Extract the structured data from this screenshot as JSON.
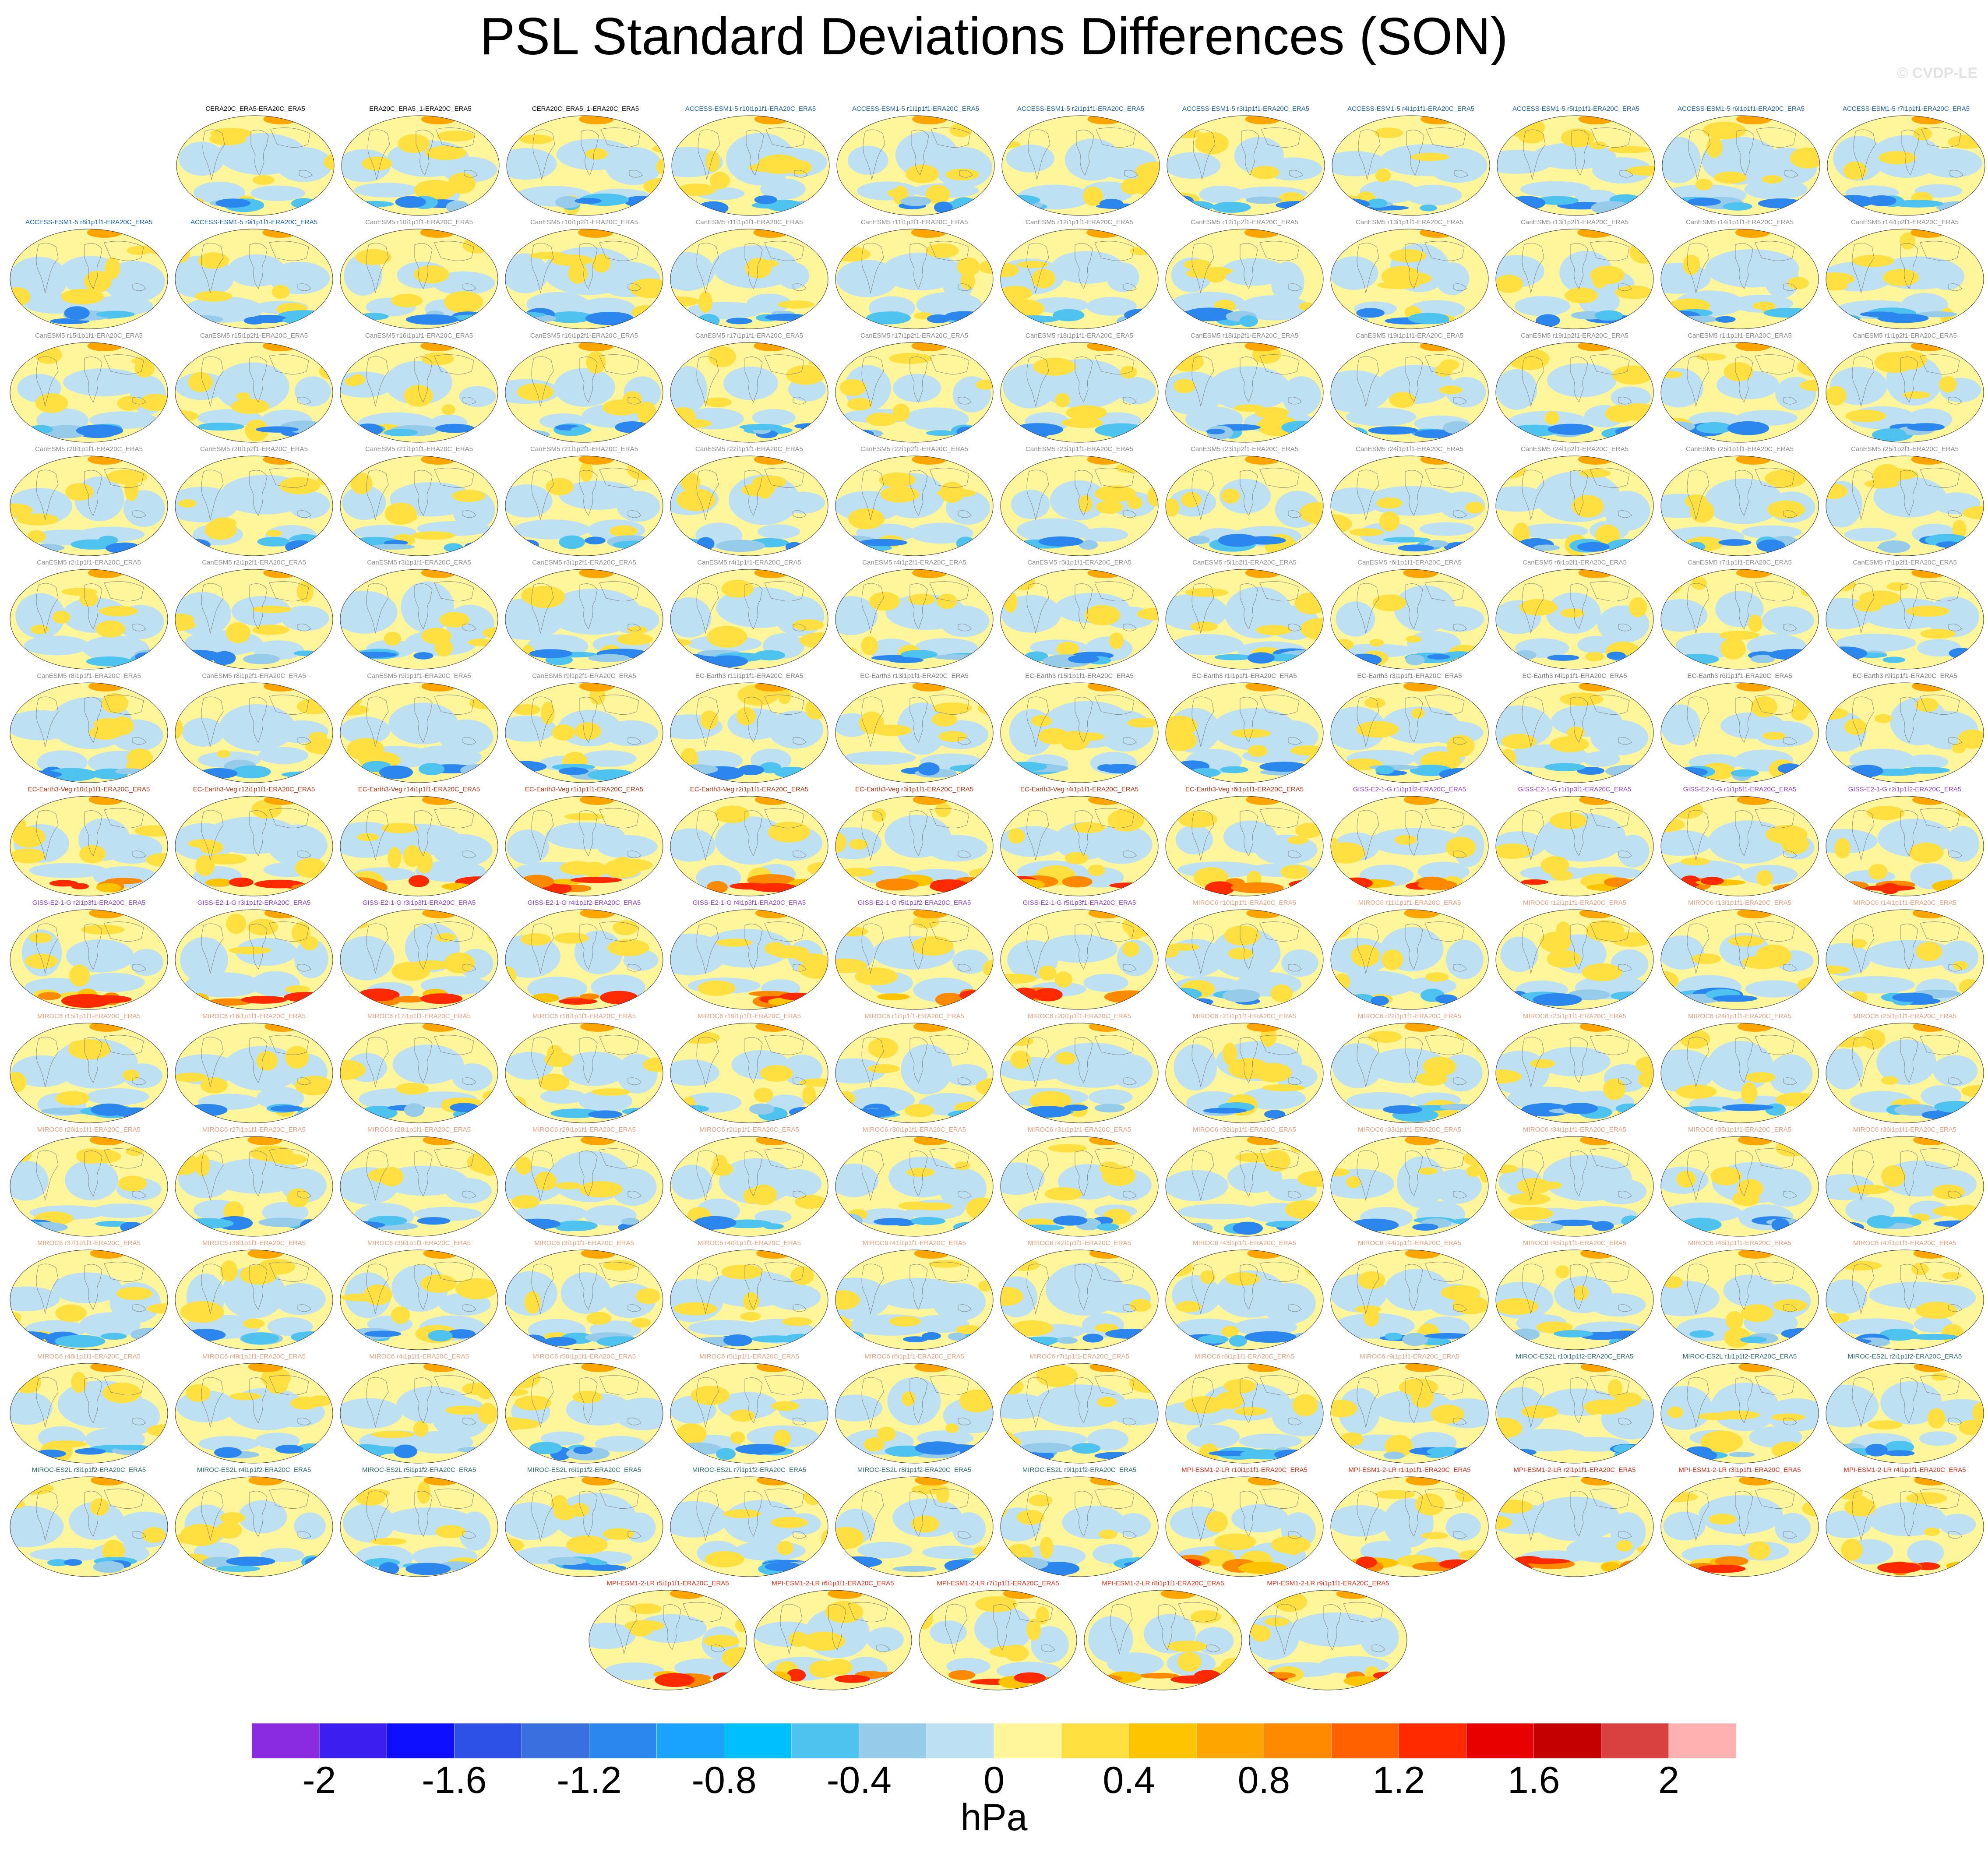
{
  "title": "PSL Standard Deviations Differences (SON)",
  "credit": "© CVDP-LE",
  "chart_data": {
    "type": "heatmap",
    "title": "PSL Standard Deviations Differences (SON)",
    "units": "hPa",
    "colorbar": {
      "ticks": [
        "-2",
        "-1.6",
        "-1.2",
        "-0.8",
        "-0.4",
        "0",
        "0.4",
        "0.8",
        "1.2",
        "1.6",
        "2"
      ],
      "levels": [
        -2.2,
        -2.0,
        -1.8,
        -1.6,
        -1.4,
        -1.2,
        -1.0,
        -0.8,
        -0.6,
        -0.4,
        -0.2,
        0,
        0.2,
        0.4,
        0.6,
        0.8,
        1.0,
        1.2,
        1.4,
        1.6,
        1.8,
        2.0,
        2.2
      ],
      "colors": [
        "#8a2be2",
        "#3c1ef0",
        "#0f0fff",
        "#2d50e6",
        "#3a6fe0",
        "#2b86ee",
        "#19a3ff",
        "#00bfff",
        "#4fc3f0",
        "#96cbea",
        "#bde0f3",
        "#fff59a",
        "#ffe040",
        "#ffc400",
        "#ffa500",
        "#ff8a00",
        "#ff6000",
        "#ff2a00",
        "#e80000",
        "#c40000",
        "#d94040",
        "#ffb0b0"
      ]
    },
    "panels": [
      {
        "label": "CERA20C_ERA5-ERA20C_ERA5",
        "color": "#000000"
      },
      {
        "label": "ERA20C_ERA5_1-ERA20C_ERA5",
        "color": "#000000"
      },
      {
        "label": "CERA20C_ERA5_1-ERA20C_ERA5",
        "color": "#000000"
      },
      {
        "label": "ACCESS-ESM1-5 r10i1p1f1-ERA20C_ERA5",
        "color": "#1a5fa8"
      },
      {
        "label": "ACCESS-ESM1-5 r1i1p1f1-ERA20C_ERA5",
        "color": "#1a5fa8"
      },
      {
        "label": "ACCESS-ESM1-5 r2i1p1f1-ERA20C_ERA5",
        "color": "#1a5fa8"
      },
      {
        "label": "ACCESS-ESM1-5 r3i1p1f1-ERA20C_ERA5",
        "color": "#1a5fa8"
      },
      {
        "label": "ACCESS-ESM1-5 r4i1p1f1-ERA20C_ERA5",
        "color": "#1a5fa8"
      },
      {
        "label": "ACCESS-ESM1-5 r5i1p1f1-ERA20C_ERA5",
        "color": "#1a5fa8"
      },
      {
        "label": "ACCESS-ESM1-5 r6i1p1f1-ERA20C_ERA5",
        "color": "#1a5fa8"
      },
      {
        "label": "ACCESS-ESM1-5 r7i1p1f1-ERA20C_ERA5",
        "color": "#1a5fa8"
      },
      {
        "label": "ACCESS-ESM1-5 r8i1p1f1-ERA20C_ERA5",
        "color": "#1a5fa8"
      },
      {
        "label": "ACCESS-ESM1-5 r9i1p1f1-ERA20C_ERA5",
        "color": "#1a5fa8"
      },
      {
        "label": "CanESM5 r10i1p1f1-ERA20C_ERA5",
        "color": "#8c8c8c"
      },
      {
        "label": "CanESM5 r10i1p2f1-ERA20C_ERA5",
        "color": "#8c8c8c"
      },
      {
        "label": "CanESM5 r11i1p1f1-ERA20C_ERA5",
        "color": "#8c8c8c"
      },
      {
        "label": "CanESM5 r11i1p2f1-ERA20C_ERA5",
        "color": "#8c8c8c"
      },
      {
        "label": "CanESM5 r12i1p1f1-ERA20C_ERA5",
        "color": "#8c8c8c"
      },
      {
        "label": "CanESM5 r12i1p2f1-ERA20C_ERA5",
        "color": "#8c8c8c"
      },
      {
        "label": "CanESM5 r13i1p1f1-ERA20C_ERA5",
        "color": "#8c8c8c"
      },
      {
        "label": "CanESM5 r13i1p2f1-ERA20C_ERA5",
        "color": "#8c8c8c"
      },
      {
        "label": "CanESM5 r14i1p1f1-ERA20C_ERA5",
        "color": "#8c8c8c"
      },
      {
        "label": "CanESM5 r14i1p2f1-ERA20C_ERA5",
        "color": "#8c8c8c"
      },
      {
        "label": "CanESM5 r15i1p1f1-ERA20C_ERA5",
        "color": "#8c8c8c"
      },
      {
        "label": "CanESM5 r15i1p2f1-ERA20C_ERA5",
        "color": "#8c8c8c"
      },
      {
        "label": "CanESM5 r16i1p1f1-ERA20C_ERA5",
        "color": "#8c8c8c"
      },
      {
        "label": "CanESM5 r16i1p2f1-ERA20C_ERA5",
        "color": "#8c8c8c"
      },
      {
        "label": "CanESM5 r17i1p1f1-ERA20C_ERA5",
        "color": "#8c8c8c"
      },
      {
        "label": "CanESM5 r17i1p2f1-ERA20C_ERA5",
        "color": "#8c8c8c"
      },
      {
        "label": "CanESM5 r18i1p1f1-ERA20C_ERA5",
        "color": "#8c8c8c"
      },
      {
        "label": "CanESM5 r18i1p2f1-ERA20C_ERA5",
        "color": "#8c8c8c"
      },
      {
        "label": "CanESM5 r19i1p1f1-ERA20C_ERA5",
        "color": "#8c8c8c"
      },
      {
        "label": "CanESM5 r19i1p2f1-ERA20C_ERA5",
        "color": "#8c8c8c"
      },
      {
        "label": "CanESM5 r1i1p1f1-ERA20C_ERA5",
        "color": "#8c8c8c"
      },
      {
        "label": "CanESM5 r1i1p2f1-ERA20C_ERA5",
        "color": "#8c8c8c"
      },
      {
        "label": "CanESM5 r20i1p1f1-ERA20C_ERA5",
        "color": "#8c8c8c"
      },
      {
        "label": "CanESM5 r20i1p2f1-ERA20C_ERA5",
        "color": "#8c8c8c"
      },
      {
        "label": "CanESM5 r21i1p1f1-ERA20C_ERA5",
        "color": "#8c8c8c"
      },
      {
        "label": "CanESM5 r21i1p2f1-ERA20C_ERA5",
        "color": "#8c8c8c"
      },
      {
        "label": "CanESM5 r22i1p1f1-ERA20C_ERA5",
        "color": "#8c8c8c"
      },
      {
        "label": "CanESM5 r22i1p2f1-ERA20C_ERA5",
        "color": "#8c8c8c"
      },
      {
        "label": "CanESM5 r23i1p1f1-ERA20C_ERA5",
        "color": "#8c8c8c"
      },
      {
        "label": "CanESM5 r23i1p2f1-ERA20C_ERA5",
        "color": "#8c8c8c"
      },
      {
        "label": "CanESM5 r24i1p1f1-ERA20C_ERA5",
        "color": "#8c8c8c"
      },
      {
        "label": "CanESM5 r24i1p2f1-ERA20C_ERA5",
        "color": "#8c8c8c"
      },
      {
        "label": "CanESM5 r25i1p1f1-ERA20C_ERA5",
        "color": "#8c8c8c"
      },
      {
        "label": "CanESM5 r25i1p2f1-ERA20C_ERA5",
        "color": "#8c8c8c"
      },
      {
        "label": "CanESM5 r2i1p1f1-ERA20C_ERA5",
        "color": "#8c8c8c"
      },
      {
        "label": "CanESM5 r2i1p2f1-ERA20C_ERA5",
        "color": "#8c8c8c"
      },
      {
        "label": "CanESM5 r3i1p1f1-ERA20C_ERA5",
        "color": "#8c8c8c"
      },
      {
        "label": "CanESM5 r3i1p2f1-ERA20C_ERA5",
        "color": "#8c8c8c"
      },
      {
        "label": "CanESM5 r4i1p1f1-ERA20C_ERA5",
        "color": "#8c8c8c"
      },
      {
        "label": "CanESM5 r4i1p2f1-ERA20C_ERA5",
        "color": "#8c8c8c"
      },
      {
        "label": "CanESM5 r5i1p1f1-ERA20C_ERA5",
        "color": "#8c8c8c"
      },
      {
        "label": "CanESM5 r5i1p2f1-ERA20C_ERA5",
        "color": "#8c8c8c"
      },
      {
        "label": "CanESM5 r6i1p1f1-ERA20C_ERA5",
        "color": "#8c8c8c"
      },
      {
        "label": "CanESM5 r6i1p2f1-ERA20C_ERA5",
        "color": "#8c8c8c"
      },
      {
        "label": "CanESM5 r7i1p1f1-ERA20C_ERA5",
        "color": "#8c8c8c"
      },
      {
        "label": "CanESM5 r7i1p2f1-ERA20C_ERA5",
        "color": "#8c8c8c"
      },
      {
        "label": "CanESM5 r8i1p1f1-ERA20C_ERA5",
        "color": "#8c8c8c"
      },
      {
        "label": "CanESM5 r8i1p2f1-ERA20C_ERA5",
        "color": "#8c8c8c"
      },
      {
        "label": "CanESM5 r9i1p1f1-ERA20C_ERA5",
        "color": "#8c8c8c"
      },
      {
        "label": "CanESM5 r9i1p2f1-ERA20C_ERA5",
        "color": "#8c8c8c"
      },
      {
        "label": "EC-Earth3 r11i1p1f1-ERA20C_ERA5",
        "color": "#7a7a7a"
      },
      {
        "label": "EC-Earth3 r13i1p1f1-ERA20C_ERA5",
        "color": "#7a7a7a"
      },
      {
        "label": "EC-Earth3 r15i1p1f1-ERA20C_ERA5",
        "color": "#7a7a7a"
      },
      {
        "label": "EC-Earth3 r1i1p1f1-ERA20C_ERA5",
        "color": "#7a7a7a"
      },
      {
        "label": "EC-Earth3 r3i1p1f1-ERA20C_ERA5",
        "color": "#7a7a7a"
      },
      {
        "label": "EC-Earth3 r4i1p1f1-ERA20C_ERA5",
        "color": "#7a7a7a"
      },
      {
        "label": "EC-Earth3 r6i1p1f1-ERA20C_ERA5",
        "color": "#7a7a7a"
      },
      {
        "label": "EC-Earth3 r9i1p1f1-ERA20C_ERA5",
        "color": "#7a7a7a"
      },
      {
        "label": "EC-Earth3-Veg r10i1p1f1-ERA20C_ERA5",
        "color": "#b03010"
      },
      {
        "label": "EC-Earth3-Veg r12i1p1f1-ERA20C_ERA5",
        "color": "#b03010"
      },
      {
        "label": "EC-Earth3-Veg r14i1p1f1-ERA20C_ERA5",
        "color": "#b03010"
      },
      {
        "label": "EC-Earth3-Veg r1i1p1f1-ERA20C_ERA5",
        "color": "#b03010"
      },
      {
        "label": "EC-Earth3-Veg r2i1p1f1-ERA20C_ERA5",
        "color": "#b03010"
      },
      {
        "label": "EC-Earth3-Veg r3i1p1f1-ERA20C_ERA5",
        "color": "#b03010"
      },
      {
        "label": "EC-Earth3-Veg r4i1p1f1-ERA20C_ERA5",
        "color": "#b03010"
      },
      {
        "label": "EC-Earth3-Veg r6i1p1f1-ERA20C_ERA5",
        "color": "#b03010"
      },
      {
        "label": "GISS-E2-1-G r1i1p1f2-ERA20C_ERA5",
        "color": "#8a3fd6"
      },
      {
        "label": "GISS-E2-1-G r1i1p3f1-ERA20C_ERA5",
        "color": "#8a3fd6"
      },
      {
        "label": "GISS-E2-1-G r1i1p5f1-ERA20C_ERA5",
        "color": "#8a3fd6"
      },
      {
        "label": "GISS-E2-1-G r2i1p1f2-ERA20C_ERA5",
        "color": "#8a3fd6"
      },
      {
        "label": "GISS-E2-1-G r2i1p3f1-ERA20C_ERA5",
        "color": "#8a3fd6"
      },
      {
        "label": "GISS-E2-1-G r3i1p1f2-ERA20C_ERA5",
        "color": "#8a3fd6"
      },
      {
        "label": "GISS-E2-1-G r3i1p3f1-ERA20C_ERA5",
        "color": "#8a3fd6"
      },
      {
        "label": "GISS-E2-1-G r4i1p1f2-ERA20C_ERA5",
        "color": "#8a3fd6"
      },
      {
        "label": "GISS-E2-1-G r4i1p3f1-ERA20C_ERA5",
        "color": "#8a3fd6"
      },
      {
        "label": "GISS-E2-1-G r5i1p1f2-ERA20C_ERA5",
        "color": "#8a3fd6"
      },
      {
        "label": "GISS-E2-1-G r5i1p3f1-ERA20C_ERA5",
        "color": "#8a3fd6"
      },
      {
        "label": "MIROC6 r10i1p1f1-ERA20C_ERA5",
        "color": "#e8a080"
      },
      {
        "label": "MIROC6 r11i1p1f1-ERA20C_ERA5",
        "color": "#e8a080"
      },
      {
        "label": "MIROC6 r12i1p1f1-ERA20C_ERA5",
        "color": "#e8a080"
      },
      {
        "label": "MIROC6 r13i1p1f1-ERA20C_ERA5",
        "color": "#e8a080"
      },
      {
        "label": "MIROC6 r14i1p1f1-ERA20C_ERA5",
        "color": "#e8a080"
      },
      {
        "label": "MIROC6 r15i1p1f1-ERA20C_ERA5",
        "color": "#e8a080"
      },
      {
        "label": "MIROC6 r16i1p1f1-ERA20C_ERA5",
        "color": "#e8a080"
      },
      {
        "label": "MIROC6 r17i1p1f1-ERA20C_ERA5",
        "color": "#e8a080"
      },
      {
        "label": "MIROC6 r18i1p1f1-ERA20C_ERA5",
        "color": "#e8a080"
      },
      {
        "label": "MIROC6 r19i1p1f1-ERA20C_ERA5",
        "color": "#e8a080"
      },
      {
        "label": "MIROC6 r1i1p1f1-ERA20C_ERA5",
        "color": "#e8a080"
      },
      {
        "label": "MIROC6 r20i1p1f1-ERA20C_ERA5",
        "color": "#e8a080"
      },
      {
        "label": "MIROC6 r21i1p1f1-ERA20C_ERA5",
        "color": "#e8a080"
      },
      {
        "label": "MIROC6 r22i1p1f1-ERA20C_ERA5",
        "color": "#e8a080"
      },
      {
        "label": "MIROC6 r23i1p1f1-ERA20C_ERA5",
        "color": "#e8a080"
      },
      {
        "label": "MIROC6 r24i1p1f1-ERA20C_ERA5",
        "color": "#e8a080"
      },
      {
        "label": "MIROC6 r25i1p1f1-ERA20C_ERA5",
        "color": "#e8a080"
      },
      {
        "label": "MIROC6 r26i1p1f1-ERA20C_ERA5",
        "color": "#e8a080"
      },
      {
        "label": "MIROC6 r27i1p1f1-ERA20C_ERA5",
        "color": "#e8a080"
      },
      {
        "label": "MIROC6 r28i1p1f1-ERA20C_ERA5",
        "color": "#e8a080"
      },
      {
        "label": "MIROC6 r29i1p1f1-ERA20C_ERA5",
        "color": "#e8a080"
      },
      {
        "label": "MIROC6 r2i1p1f1-ERA20C_ERA5",
        "color": "#e8a080"
      },
      {
        "label": "MIROC6 r30i1p1f1-ERA20C_ERA5",
        "color": "#e8a080"
      },
      {
        "label": "MIROC6 r31i1p1f1-ERA20C_ERA5",
        "color": "#e8a080"
      },
      {
        "label": "MIROC6 r32i1p1f1-ERA20C_ERA5",
        "color": "#e8a080"
      },
      {
        "label": "MIROC6 r33i1p1f1-ERA20C_ERA5",
        "color": "#e8a080"
      },
      {
        "label": "MIROC6 r34i1p1f1-ERA20C_ERA5",
        "color": "#e8a080"
      },
      {
        "label": "MIROC6 r35i1p1f1-ERA20C_ERA5",
        "color": "#e8a080"
      },
      {
        "label": "MIROC6 r36i1p1f1-ERA20C_ERA5",
        "color": "#e8a080"
      },
      {
        "label": "MIROC6 r37i1p1f1-ERA20C_ERA5",
        "color": "#e8a080"
      },
      {
        "label": "MIROC6 r38i1p1f1-ERA20C_ERA5",
        "color": "#e8a080"
      },
      {
        "label": "MIROC6 r39i1p1f1-ERA20C_ERA5",
        "color": "#e8a080"
      },
      {
        "label": "MIROC6 r3i1p1f1-ERA20C_ERA5",
        "color": "#e8a080"
      },
      {
        "label": "MIROC6 r40i1p1f1-ERA20C_ERA5",
        "color": "#e8a080"
      },
      {
        "label": "MIROC6 r41i1p1f1-ERA20C_ERA5",
        "color": "#e8a080"
      },
      {
        "label": "MIROC6 r42i1p1f1-ERA20C_ERA5",
        "color": "#e8a080"
      },
      {
        "label": "MIROC6 r43i1p1f1-ERA20C_ERA5",
        "color": "#e8a080"
      },
      {
        "label": "MIROC6 r44i1p1f1-ERA20C_ERA5",
        "color": "#e8a080"
      },
      {
        "label": "MIROC6 r45i1p1f1-ERA20C_ERA5",
        "color": "#e8a080"
      },
      {
        "label": "MIROC6 r46i1p1f1-ERA20C_ERA5",
        "color": "#e8a080"
      },
      {
        "label": "MIROC6 r47i1p1f1-ERA20C_ERA5",
        "color": "#e8a080"
      },
      {
        "label": "MIROC6 r48i1p1f1-ERA20C_ERA5",
        "color": "#e8a080"
      },
      {
        "label": "MIROC6 r49i1p1f1-ERA20C_ERA5",
        "color": "#e8a080"
      },
      {
        "label": "MIROC6 r4i1p1f1-ERA20C_ERA5",
        "color": "#e8a080"
      },
      {
        "label": "MIROC6 r50i1p1f1-ERA20C_ERA5",
        "color": "#e8a080"
      },
      {
        "label": "MIROC6 r5i1p1f1-ERA20C_ERA5",
        "color": "#e8a080"
      },
      {
        "label": "MIROC6 r6i1p1f1-ERA20C_ERA5",
        "color": "#e8a080"
      },
      {
        "label": "MIROC6 r7i1p1f1-ERA20C_ERA5",
        "color": "#e8a080"
      },
      {
        "label": "MIROC6 r8i1p1f1-ERA20C_ERA5",
        "color": "#e8a080"
      },
      {
        "label": "MIROC6 r9i1p1f1-ERA20C_ERA5",
        "color": "#e8a080"
      },
      {
        "label": "MIROC-ES2L r10i1p1f2-ERA20C_ERA5",
        "color": "#2a6a6a"
      },
      {
        "label": "MIROC-ES2L r1i1p1f2-ERA20C_ERA5",
        "color": "#2a6a6a"
      },
      {
        "label": "MIROC-ES2L r2i1p1f2-ERA20C_ERA5",
        "color": "#2a6a6a"
      },
      {
        "label": "MIROC-ES2L r3i1p1f2-ERA20C_ERA5",
        "color": "#2a6a6a"
      },
      {
        "label": "MIROC-ES2L r4i1p1f2-ERA20C_ERA5",
        "color": "#2a6a6a"
      },
      {
        "label": "MIROC-ES2L r5i1p1f2-ERA20C_ERA5",
        "color": "#2a6a6a"
      },
      {
        "label": "MIROC-ES2L r6i1p1f2-ERA20C_ERA5",
        "color": "#2a6a6a"
      },
      {
        "label": "MIROC-ES2L r7i1p1f2-ERA20C_ERA5",
        "color": "#2a6a6a"
      },
      {
        "label": "MIROC-ES2L r8i1p1f2-ERA20C_ERA5",
        "color": "#2a6a6a"
      },
      {
        "label": "MIROC-ES2L r9i1p1f2-ERA20C_ERA5",
        "color": "#2a6a6a"
      },
      {
        "label": "MPI-ESM1-2-LR r10i1p1f1-ERA20C_ERA5",
        "color": "#e0301a"
      },
      {
        "label": "MPI-ESM1-2-LR r1i1p1f1-ERA20C_ERA5",
        "color": "#e0301a"
      },
      {
        "label": "MPI-ESM1-2-LR r2i1p1f1-ERA20C_ERA5",
        "color": "#e0301a"
      },
      {
        "label": "MPI-ESM1-2-LR r3i1p1f1-ERA20C_ERA5",
        "color": "#e0301a"
      },
      {
        "label": "MPI-ESM1-2-LR r4i1p1f1-ERA20C_ERA5",
        "color": "#e0301a"
      },
      {
        "label": "MPI-ESM1-2-LR r5i1p1f1-ERA20C_ERA5",
        "color": "#e0301a"
      },
      {
        "label": "MPI-ESM1-2-LR r6i1p1f1-ERA20C_ERA5",
        "color": "#e0301a"
      },
      {
        "label": "MPI-ESM1-2-LR r7i1p1f1-ERA20C_ERA5",
        "color": "#e0301a"
      },
      {
        "label": "MPI-ESM1-2-LR r8i1p1f1-ERA20C_ERA5",
        "color": "#e0301a"
      },
      {
        "label": "MPI-ESM1-2-LR r9i1p1f1-ERA20C_ERA5",
        "color": "#e0301a"
      }
    ]
  }
}
